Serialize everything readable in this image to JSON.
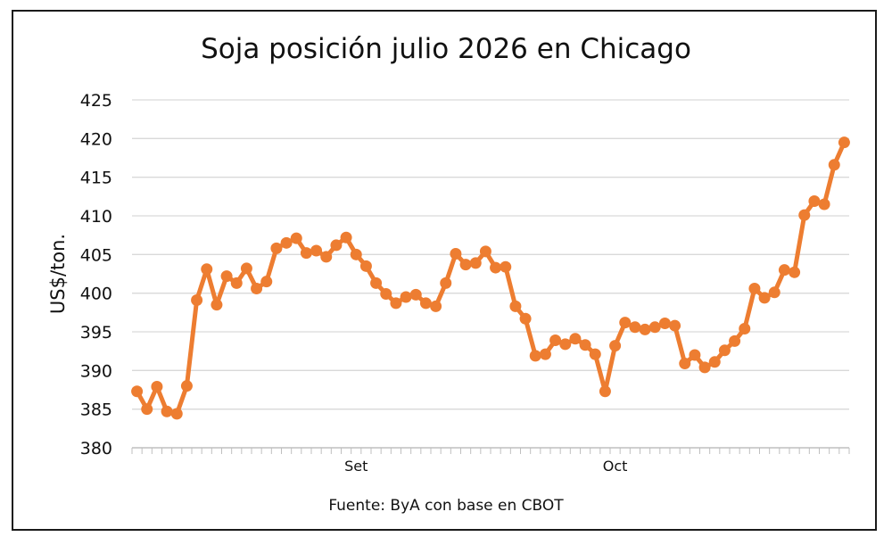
{
  "chart_data": {
    "type": "line",
    "title": "Soja posición julio 2026 en Chicago",
    "ylabel": "US$/ton.",
    "xlabel": "",
    "source": "Fuente: ByA con base en CBOT",
    "ylim": [
      380,
      425
    ],
    "yticks": [
      380,
      385,
      390,
      395,
      400,
      405,
      410,
      415,
      420,
      425
    ],
    "grid": true,
    "x_labels": [
      {
        "label": "Set",
        "index": 22
      },
      {
        "label": "Oct",
        "index": 48
      }
    ],
    "series": [
      {
        "color": "#ED7D31",
        "values": [
          387.3,
          385.0,
          387.9,
          384.7,
          384.4,
          388.0,
          399.1,
          403.1,
          398.5,
          402.2,
          401.3,
          403.2,
          400.6,
          401.5,
          405.8,
          406.5,
          407.1,
          405.2,
          405.5,
          404.7,
          406.2,
          407.2,
          405.0,
          403.5,
          401.3,
          399.9,
          398.7,
          399.5,
          399.8,
          398.7,
          398.3,
          401.3,
          405.1,
          403.7,
          403.9,
          405.4,
          403.3,
          403.4,
          398.3,
          396.7,
          391.9,
          392.1,
          393.9,
          393.4,
          394.1,
          393.3,
          392.1,
          387.3,
          393.2,
          396.2,
          395.6,
          395.3,
          395.6,
          396.1,
          395.8,
          390.9,
          392.0,
          390.4,
          391.1,
          392.6,
          393.8,
          395.4,
          400.6,
          399.4,
          400.1,
          403.0,
          402.7,
          410.1,
          411.9,
          411.5,
          416.6,
          419.5
        ]
      }
    ]
  },
  "colors": {
    "line": "#ED7D31",
    "grid": "#d9d9d9",
    "axis": "#bfbfbf"
  }
}
